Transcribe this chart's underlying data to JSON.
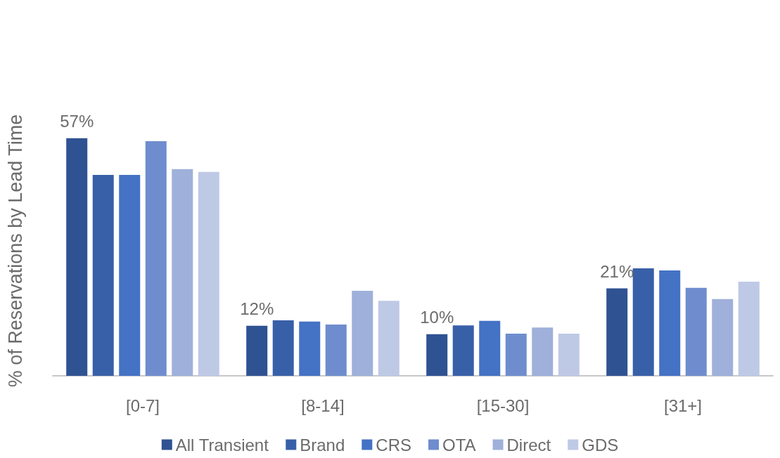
{
  "chart_data": {
    "type": "bar",
    "ylabel": "% of Reservations by Lead Time",
    "categories": [
      "[0-7]",
      "[8-14]",
      "[15-30]",
      "[31+]"
    ],
    "legend": "bottom",
    "grid": false,
    "series": [
      {
        "name": "All Transient",
        "color": "#2f5292",
        "values": [
          57,
          12,
          10,
          21
        ],
        "value_labels": [
          "57%",
          "12%",
          "10%",
          "21%"
        ]
      },
      {
        "name": "Brand",
        "color": "#3860a8",
        "values": [
          48.2,
          13.3,
          12.1,
          25.8
        ]
      },
      {
        "name": "CRS",
        "color": "#4472c4",
        "values": [
          48.2,
          13.0,
          13.2,
          25.3
        ]
      },
      {
        "name": "OTA",
        "color": "#6f8dce",
        "values": [
          56.3,
          12.3,
          10.1,
          21.1
        ]
      },
      {
        "name": "Direct",
        "color": "#9fb0da",
        "values": [
          49.6,
          20.4,
          11.6,
          18.4
        ]
      },
      {
        "name": "GDS",
        "color": "#bec9e6",
        "values": [
          48.9,
          18.0,
          10.1,
          22.6
        ]
      }
    ]
  }
}
